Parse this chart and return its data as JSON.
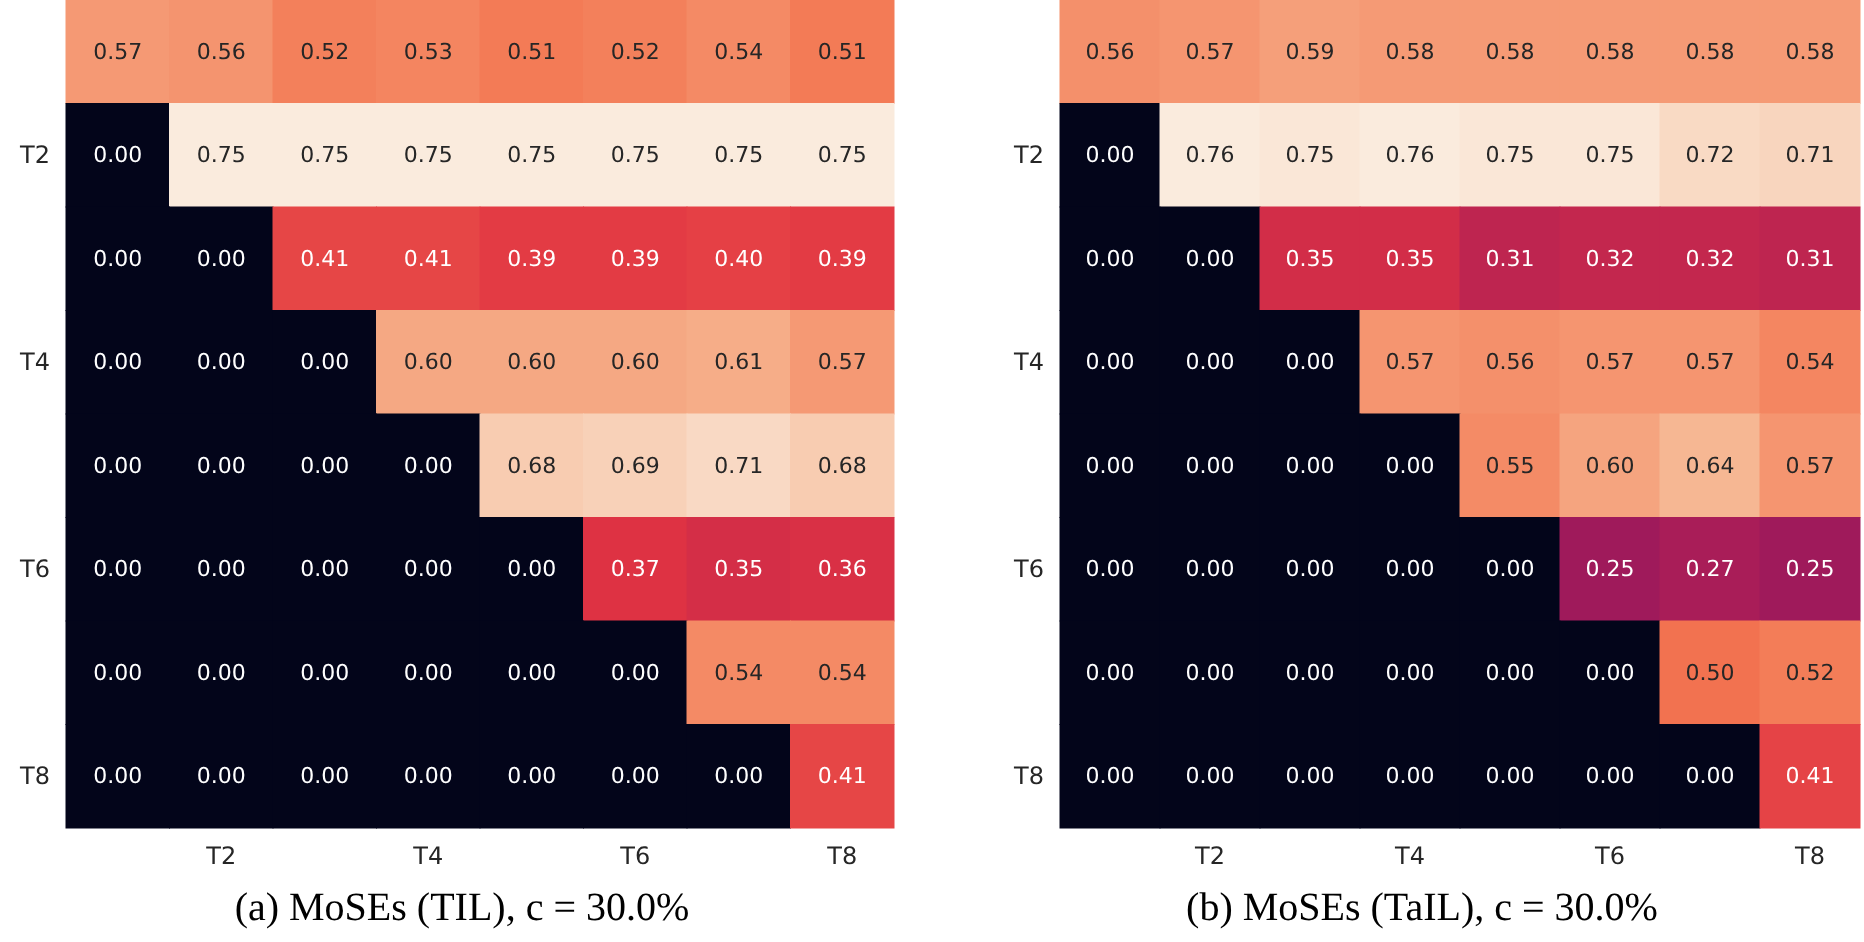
{
  "chart_data": [
    {
      "type": "heatmap",
      "title": "(a) MoSEs (TIL), c = 30.0%",
      "categories": [
        null,
        "T2",
        null,
        "T4",
        null,
        "T6",
        null,
        "T8"
      ],
      "y_categories": [
        null,
        "T2",
        null,
        "T4",
        null,
        "T6",
        null,
        "T8"
      ],
      "cells": [
        [
          0.57,
          0.56,
          0.52,
          0.53,
          0.51,
          0.52,
          0.54,
          0.51
        ],
        [
          0.0,
          0.75,
          0.75,
          0.75,
          0.75,
          0.75,
          0.75,
          0.75
        ],
        [
          0.0,
          0.0,
          0.41,
          0.41,
          0.39,
          0.39,
          0.4,
          0.39
        ],
        [
          0.0,
          0.0,
          0.0,
          0.6,
          0.6,
          0.6,
          0.61,
          0.57
        ],
        [
          0.0,
          0.0,
          0.0,
          0.0,
          0.68,
          0.69,
          0.71,
          0.68
        ],
        [
          0.0,
          0.0,
          0.0,
          0.0,
          0.0,
          0.37,
          0.35,
          0.36
        ],
        [
          0.0,
          0.0,
          0.0,
          0.0,
          0.0,
          0.0,
          0.54,
          0.54
        ],
        [
          0.0,
          0.0,
          0.0,
          0.0,
          0.0,
          0.0,
          0.0,
          0.41
        ]
      ],
      "cell_labels": [
        [
          "0.57",
          "0.56",
          "0.52",
          "0.53",
          "0.51",
          "0.52",
          "0.54",
          "0.51"
        ],
        [
          "0.00",
          "0.75",
          "0.75",
          "0.75",
          "0.75",
          "0.75",
          "0.75",
          "0.75"
        ],
        [
          "0.00",
          "0.00",
          "0.41",
          "0.41",
          "0.39",
          "0.39",
          "0.40",
          "0.39"
        ],
        [
          "0.00",
          "0.00",
          "0.00",
          "0.60",
          "0.60",
          "0.60",
          "0.61",
          "0.57"
        ],
        [
          "0.00",
          "0.00",
          "0.00",
          "0.00",
          "0.68",
          "0.69",
          "0.71",
          "0.68"
        ],
        [
          "0.00",
          "0.00",
          "0.00",
          "0.00",
          "0.00",
          "0.37",
          "0.35",
          "0.36"
        ],
        [
          "0.00",
          "0.00",
          "0.00",
          "0.00",
          "0.00",
          "0.00",
          "0.54",
          "0.54"
        ],
        [
          "0.00",
          "0.00",
          "0.00",
          "0.00",
          "0.00",
          "0.00",
          "0.00",
          "0.41"
        ]
      ]
    },
    {
      "type": "heatmap",
      "title": "(b) MoSEs (TaIL), c = 30.0%",
      "categories": [
        null,
        "T2",
        null,
        "T4",
        null,
        "T6",
        null,
        "T8"
      ],
      "y_categories": [
        null,
        "T2",
        null,
        "T4",
        null,
        "T6",
        null,
        "T8"
      ],
      "cells": [
        [
          0.56,
          0.57,
          0.59,
          0.58,
          0.58,
          0.58,
          0.58,
          0.58
        ],
        [
          0.0,
          0.76,
          0.75,
          0.76,
          0.75,
          0.75,
          0.72,
          0.71
        ],
        [
          0.0,
          0.0,
          0.35,
          0.35,
          0.31,
          0.32,
          0.32,
          0.31
        ],
        [
          0.0,
          0.0,
          0.0,
          0.57,
          0.56,
          0.57,
          0.57,
          0.54
        ],
        [
          0.0,
          0.0,
          0.0,
          0.0,
          0.55,
          0.6,
          0.64,
          0.57
        ],
        [
          0.0,
          0.0,
          0.0,
          0.0,
          0.0,
          0.25,
          0.27,
          0.25
        ],
        [
          0.0,
          0.0,
          0.0,
          0.0,
          0.0,
          0.0,
          0.5,
          0.52
        ],
        [
          0.0,
          0.0,
          0.0,
          0.0,
          0.0,
          0.0,
          0.0,
          0.41
        ]
      ],
      "cell_labels": [
        [
          "0.56",
          "0.57",
          "0.59",
          "0.58",
          "0.58",
          "0.58",
          "0.58",
          "0.58"
        ],
        [
          "0.00",
          "0.76",
          "0.75",
          "0.76",
          "0.75",
          "0.75",
          "0.72",
          "0.71"
        ],
        [
          "0.00",
          "0.00",
          "0.35",
          "0.35",
          "0.31",
          "0.32",
          "0.32",
          "0.31"
        ],
        [
          "0.00",
          "0.00",
          "0.00",
          "0.57",
          "0.56",
          "0.57",
          "0.57",
          "0.54"
        ],
        [
          "0.00",
          "0.00",
          "0.00",
          "0.00",
          "0.55",
          "0.60",
          "0.64",
          "0.57"
        ],
        [
          "0.00",
          "0.00",
          "0.00",
          "0.00",
          "0.00",
          "0.25",
          "0.27",
          "0.25"
        ],
        [
          "0.00",
          "0.00",
          "0.00",
          "0.00",
          "0.00",
          "0.00",
          "0.50",
          "0.52"
        ],
        [
          "0.00",
          "0.00",
          "0.00",
          "0.00",
          "0.00",
          "0.00",
          "0.00",
          "0.41"
        ]
      ]
    }
  ]
}
